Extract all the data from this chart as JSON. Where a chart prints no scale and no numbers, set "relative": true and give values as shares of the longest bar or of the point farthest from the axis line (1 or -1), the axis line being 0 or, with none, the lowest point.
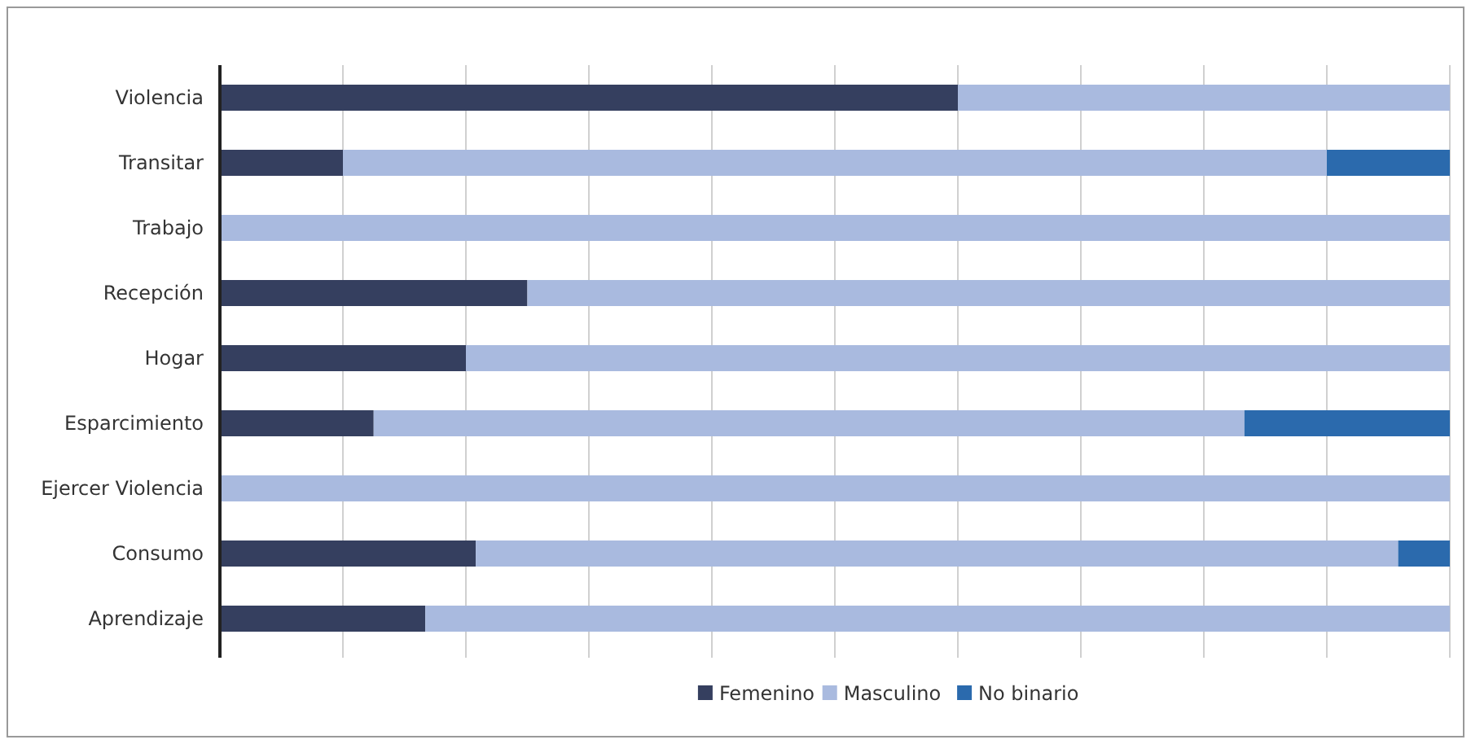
{
  "chart_data": {
    "type": "bar",
    "orientation": "horizontal",
    "stacked": true,
    "relative": true,
    "grid": "x",
    "legend": "bottom",
    "categories": [
      "Violencia",
      "Transitar",
      "Trabajo",
      "Recepción",
      "Hogar",
      "Esparcimiento",
      "Ejercer Violencia",
      "Consumo",
      "Aprendizaje"
    ],
    "series": [
      {
        "name": "Femenino",
        "color": "#353f5f",
        "values": [
          0.6,
          0.1,
          0,
          0.25,
          0.2,
          0.125,
          0,
          0.208,
          0.167
        ]
      },
      {
        "name": "Masculino",
        "color": "#a9badf",
        "values": [
          0.4,
          0.8,
          1,
          0.75,
          0.8,
          0.708,
          1,
          0.75,
          0.833
        ]
      },
      {
        "name": "No binario",
        "color": "#2b6aad",
        "values": [
          0,
          0.1,
          0,
          0,
          0,
          0.167,
          0,
          0.042,
          0
        ]
      }
    ]
  }
}
